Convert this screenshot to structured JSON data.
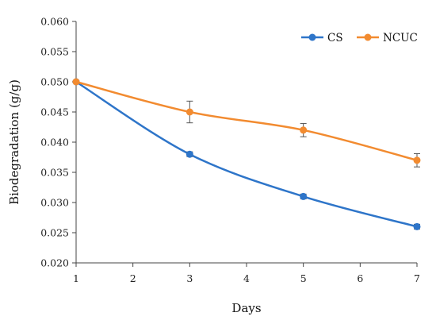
{
  "chart_data": {
    "type": "line",
    "xlabel": "Days",
    "ylabel": "Biodegradation (g/g)",
    "xlim": [
      1,
      7
    ],
    "ylim": [
      0.02,
      0.06
    ],
    "x_ticks": [
      "1",
      "2",
      "3",
      "4",
      "5",
      "6",
      "7"
    ],
    "y_ticks": [
      "0.020",
      "0.025",
      "0.030",
      "0.035",
      "0.040",
      "0.045",
      "0.050",
      "0.055",
      "0.060"
    ],
    "grid": false,
    "legend_position": "top-right",
    "series": [
      {
        "name": "CS",
        "color": "#2E75C9",
        "x": [
          1,
          3,
          5,
          7
        ],
        "y": [
          0.05,
          0.038,
          0.031,
          0.026
        ],
        "error": [
          0.0,
          0.0004,
          0.0004,
          0.0004
        ]
      },
      {
        "name": "NCUC",
        "color": "#F28B30",
        "x": [
          1,
          3,
          5,
          7
        ],
        "y": [
          0.05,
          0.045,
          0.042,
          0.037
        ],
        "error": [
          0.0,
          0.0018,
          0.0011,
          0.0011
        ]
      }
    ]
  }
}
